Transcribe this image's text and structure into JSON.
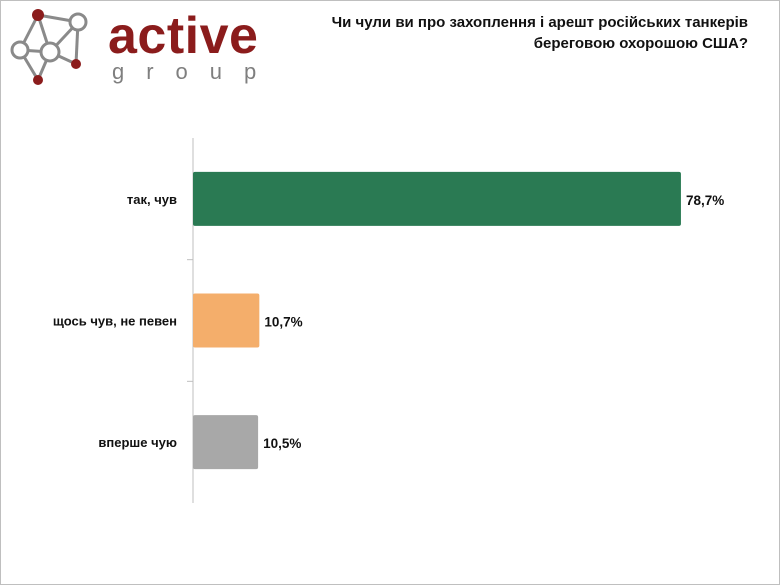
{
  "brand": {
    "word": "active",
    "sub": "group",
    "word_color": "#8b1c1c",
    "sub_color": "#7f7f7f",
    "icon": "network-nodes-icon"
  },
  "chart_data": {
    "type": "bar",
    "orientation": "horizontal",
    "title": "Чи чули ви про захоплення і арешт російських танкерів береговою охорошою США?",
    "categories": [
      "так, чув",
      "щось чув, не певен",
      "вперше чую"
    ],
    "values": [
      78.7,
      10.7,
      10.5
    ],
    "value_labels": [
      "78,7%",
      "10,7%",
      "10,5%"
    ],
    "colors": [
      "#2a7a53",
      "#f4ae6b",
      "#a8a8a8"
    ],
    "xlim": [
      0,
      100
    ],
    "grid": false,
    "legend": "none"
  }
}
